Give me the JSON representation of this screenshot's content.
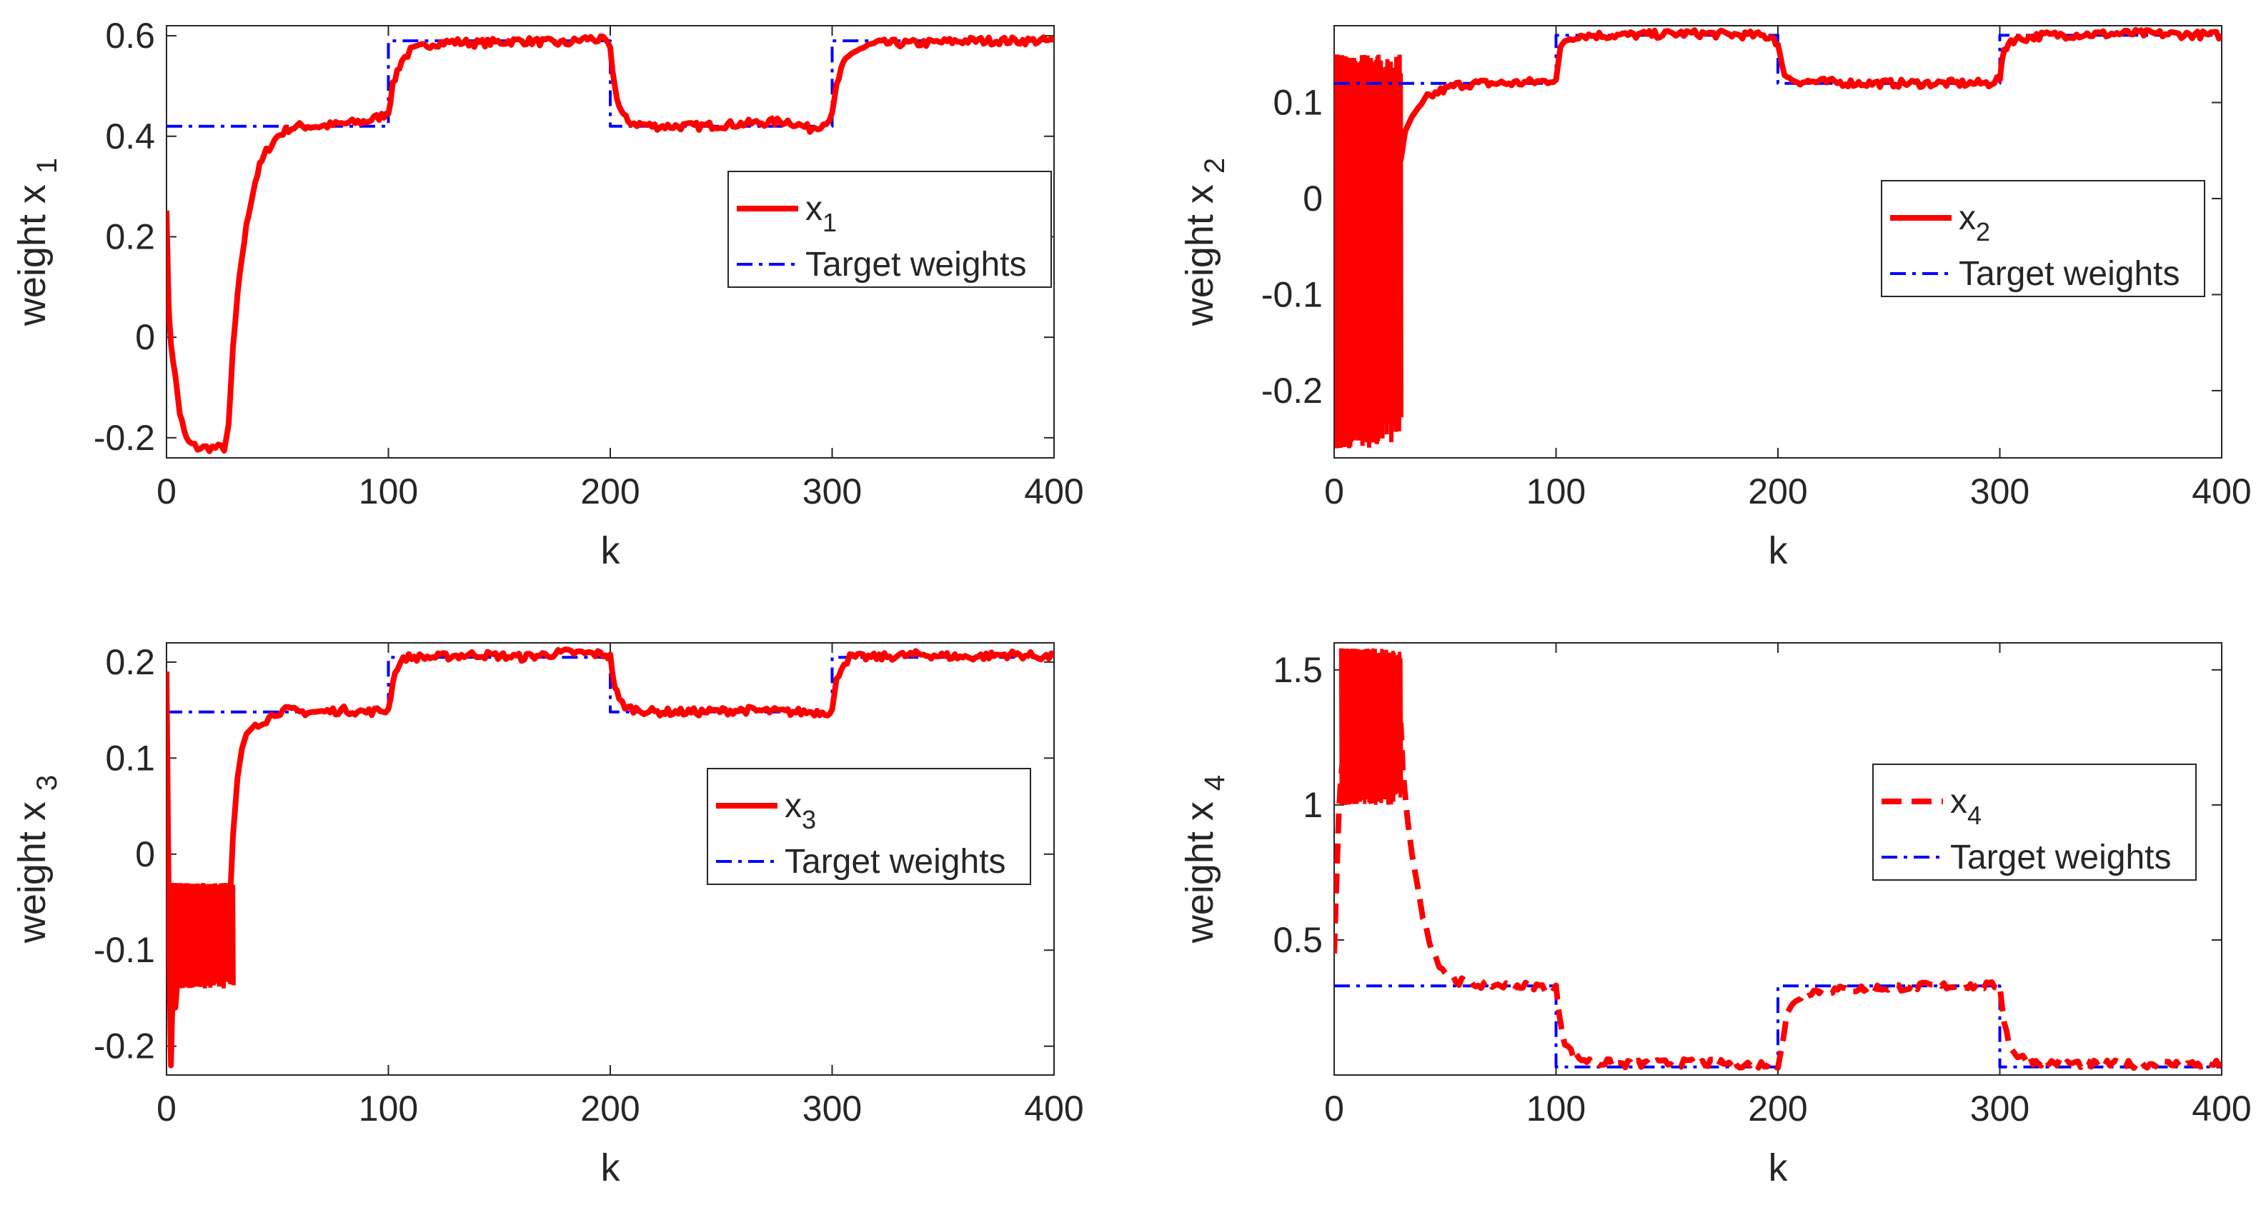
{
  "chart_data": [
    {
      "type": "line",
      "id": "p1",
      "xlabel": "k",
      "ylabel": "weight x",
      "ylabel_sub": "1",
      "xlim": [
        0,
        400
      ],
      "ylim": [
        -0.24,
        0.62
      ],
      "xticks": [
        0,
        100,
        200,
        300,
        400
      ],
      "yticks": [
        -0.2,
        0,
        0.2,
        0.4,
        0.6
      ],
      "ytick_labels": [
        "-0.2",
        "0",
        "0.2",
        "0.4",
        "0.6"
      ],
      "legend": {
        "position": "right",
        "entries": [
          {
            "label": "x",
            "sub": "1",
            "style": "solid-red"
          },
          {
            "label": "Target weights",
            "sub": "",
            "style": "dashdot-blue"
          }
        ]
      },
      "series": [
        {
          "name": "x1",
          "style": "solid-red",
          "x": [
            0,
            1,
            2,
            4,
            6,
            8,
            10,
            14,
            18,
            22,
            26,
            28,
            30,
            32,
            34,
            36,
            38,
            40,
            42,
            45,
            50,
            55,
            60,
            70,
            80,
            90,
            97,
            100,
            102,
            104,
            106,
            110,
            120,
            130,
            140,
            160,
            180,
            190,
            198,
            200,
            202,
            204,
            206,
            208,
            212,
            220,
            240,
            260,
            280,
            290,
            296,
            300,
            302,
            304,
            306,
            310,
            320,
            340,
            360,
            380,
            400
          ],
          "values": [
            0.26,
            0.05,
            -0.01,
            -0.08,
            -0.15,
            -0.19,
            -0.21,
            -0.22,
            -0.22,
            -0.22,
            -0.22,
            -0.18,
            -0.02,
            0.08,
            0.16,
            0.22,
            0.27,
            0.31,
            0.34,
            0.37,
            0.4,
            0.415,
            0.42,
            0.42,
            0.425,
            0.43,
            0.44,
            0.45,
            0.5,
            0.53,
            0.55,
            0.57,
            0.585,
            0.588,
            0.585,
            0.59,
            0.585,
            0.595,
            0.59,
            0.57,
            0.5,
            0.46,
            0.44,
            0.43,
            0.425,
            0.42,
            0.42,
            0.425,
            0.43,
            0.415,
            0.425,
            0.44,
            0.5,
            0.53,
            0.55,
            0.57,
            0.585,
            0.585,
            0.59,
            0.59,
            0.59
          ]
        },
        {
          "name": "Target weights",
          "style": "dashdot-blue",
          "x": [
            0,
            100,
            100,
            200,
            200,
            300,
            300,
            400
          ],
          "values": [
            0.42,
            0.42,
            0.59,
            0.59,
            0.42,
            0.42,
            0.59,
            0.59
          ]
        }
      ]
    },
    {
      "type": "line",
      "id": "p2",
      "xlabel": "k",
      "ylabel": "weight x",
      "ylabel_sub": "2",
      "xlim": [
        0,
        400
      ],
      "ylim": [
        -0.27,
        0.18
      ],
      "xticks": [
        0,
        100,
        200,
        300,
        400
      ],
      "yticks": [
        -0.2,
        -0.1,
        0,
        0.1
      ],
      "ytick_labels": [
        "-0.2",
        "-0.1",
        "0",
        "0.1"
      ],
      "legend": {
        "position": "right",
        "entries": [
          {
            "label": "x",
            "sub": "2",
            "style": "solid-red"
          },
          {
            "label": "Target weights",
            "sub": "",
            "style": "dashdot-blue"
          }
        ]
      },
      "series": [
        {
          "name": "x2",
          "style": "solid-red",
          "x": [
            0,
            30,
            32,
            35,
            38,
            42,
            48,
            55,
            65,
            80,
            95,
            100,
            102,
            104,
            110,
            130,
            160,
            190,
            198,
            200,
            202,
            205,
            210,
            240,
            270,
            295,
            300,
            302,
            305,
            320,
            360,
            400
          ],
          "values": [
            0.1,
            0.04,
            0.07,
            0.085,
            0.095,
            0.105,
            0.112,
            0.118,
            0.12,
            0.12,
            0.122,
            0.125,
            0.155,
            0.165,
            0.17,
            0.17,
            0.172,
            0.17,
            0.168,
            0.16,
            0.135,
            0.125,
            0.122,
            0.12,
            0.12,
            0.12,
            0.125,
            0.155,
            0.165,
            0.17,
            0.172,
            0.17
          ]
        },
        {
          "name": "Target weights",
          "style": "dashdot-blue",
          "x": [
            0,
            100,
            100,
            200,
            200,
            300,
            300,
            400
          ],
          "values": [
            0.12,
            0.12,
            0.17,
            0.17,
            0.12,
            0.12,
            0.17,
            0.17
          ]
        }
      ]
    },
    {
      "type": "line",
      "id": "p3",
      "xlabel": "k",
      "ylabel": "weight x",
      "ylabel_sub": "3",
      "xlim": [
        0,
        400
      ],
      "ylim": [
        -0.23,
        0.22
      ],
      "xticks": [
        0,
        100,
        200,
        300,
        400
      ],
      "yticks": [
        -0.2,
        -0.1,
        0,
        0.1,
        0.2
      ],
      "ytick_labels": [
        "-0.2",
        "-0.1",
        "0",
        "0.1",
        "0.2"
      ],
      "legend": {
        "position": "right",
        "entries": [
          {
            "label": "x",
            "sub": "3",
            "style": "solid-red"
          },
          {
            "label": "Target weights",
            "sub": "",
            "style": "dashdot-blue"
          }
        ]
      },
      "series": [
        {
          "name": "x3",
          "style": "solid-red",
          "x": [
            0,
            1,
            2,
            3,
            4,
            6,
            8,
            12,
            16,
            20,
            24,
            28,
            30,
            32,
            34,
            36,
            40,
            45,
            50,
            55,
            60,
            70,
            80,
            90,
            100,
            102,
            104,
            108,
            120,
            140,
            160,
            180,
            198,
            200,
            202,
            204,
            208,
            220,
            240,
            260,
            280,
            298,
            300,
            302,
            304,
            308,
            320,
            340,
            360,
            380,
            400
          ],
          "values": [
            0.19,
            -0.05,
            -0.22,
            -0.12,
            -0.16,
            -0.1,
            -0.12,
            -0.08,
            -0.07,
            -0.07,
            -0.08,
            -0.08,
            0.02,
            0.08,
            0.11,
            0.125,
            0.135,
            0.14,
            0.148,
            0.15,
            0.148,
            0.148,
            0.15,
            0.148,
            0.15,
            0.18,
            0.195,
            0.205,
            0.205,
            0.208,
            0.205,
            0.21,
            0.208,
            0.205,
            0.175,
            0.16,
            0.152,
            0.148,
            0.148,
            0.15,
            0.148,
            0.148,
            0.15,
            0.18,
            0.195,
            0.205,
            0.205,
            0.208,
            0.205,
            0.208,
            0.205
          ]
        },
        {
          "name": "Target weights",
          "style": "dashdot-blue",
          "x": [
            0,
            100,
            100,
            200,
            200,
            300,
            300,
            400
          ],
          "values": [
            0.148,
            0.148,
            0.205,
            0.205,
            0.148,
            0.148,
            0.205,
            0.205
          ]
        }
      ]
    },
    {
      "type": "line",
      "id": "p4",
      "xlabel": "k",
      "ylabel": "weight x",
      "ylabel_sub": "4",
      "xlim": [
        0,
        400
      ],
      "ylim": [
        0,
        1.6
      ],
      "xticks": [
        0,
        100,
        200,
        300,
        400
      ],
      "yticks": [
        0.5,
        1,
        1.5
      ],
      "ytick_labels": [
        "0.5",
        "1",
        "1.5"
      ],
      "legend": {
        "position": "right",
        "entries": [
          {
            "label": "x",
            "sub": "4",
            "style": "dashed-red"
          },
          {
            "label": "Target weights",
            "sub": "",
            "style": "dashdot-blue"
          }
        ]
      },
      "series": [
        {
          "name": "x4",
          "style": "dashed-red",
          "x": [
            0,
            1,
            2,
            3,
            5,
            30,
            31,
            33,
            35,
            38,
            40,
            43,
            46,
            50,
            55,
            60,
            65,
            70,
            80,
            90,
            100,
            102,
            104,
            108,
            115,
            130,
            160,
            190,
            200,
            202,
            204,
            208,
            215,
            240,
            270,
            300,
            302,
            304,
            308,
            315,
            340,
            370,
            400
          ],
          "values": [
            0.45,
            0.7,
            0.95,
            1.1,
            1.25,
            1.3,
            1.12,
            0.95,
            0.82,
            0.68,
            0.58,
            0.5,
            0.43,
            0.38,
            0.35,
            0.34,
            0.335,
            0.335,
            0.33,
            0.33,
            0.32,
            0.2,
            0.12,
            0.07,
            0.05,
            0.04,
            0.045,
            0.04,
            0.04,
            0.12,
            0.22,
            0.28,
            0.31,
            0.32,
            0.33,
            0.33,
            0.2,
            0.12,
            0.07,
            0.05,
            0.04,
            0.04,
            0.04
          ]
        },
        {
          "name": "Target weights",
          "style": "dashdot-blue",
          "x": [
            0,
            100,
            100,
            200,
            200,
            300,
            300,
            400
          ],
          "values": [
            0.33,
            0.33,
            0.03,
            0.03,
            0.33,
            0.33,
            0.03,
            0.03
          ]
        }
      ]
    }
  ],
  "colors": {
    "series_red": "#ff0000",
    "target_blue": "#0000ff",
    "axis": "#262626",
    "grid_tick": "#262626"
  }
}
